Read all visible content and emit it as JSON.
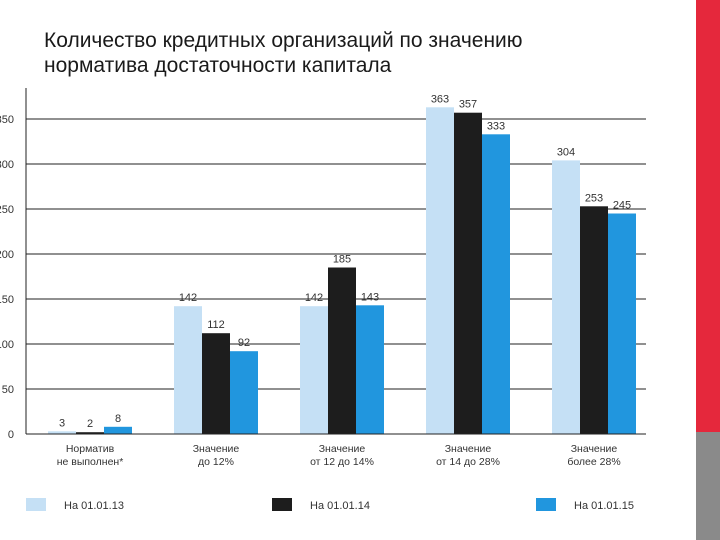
{
  "page": {
    "title_line1": "Количество кредитных организаций по значению",
    "title_line2": "норматива достаточности капитала"
  },
  "colors": {
    "side_red": "#e5283c",
    "side_gray": "#8a8a8a"
  },
  "chart_data": {
    "type": "bar",
    "title": "Количество кредитных организаций по значению норматива достаточности капитала",
    "xlabel": "",
    "ylabel": "",
    "ylim": [
      0,
      370
    ],
    "yticks": [
      0,
      50,
      100,
      150,
      200,
      250,
      300,
      350
    ],
    "categories": [
      [
        "Норматив",
        "не выполнен*"
      ],
      [
        "Значение",
        "до 12%"
      ],
      [
        "Значение",
        "от 12 до 14%"
      ],
      [
        "Значение",
        "от 14 до 28%"
      ],
      [
        "Значение",
        "более 28%"
      ]
    ],
    "series": [
      {
        "name": "На 01.01.13",
        "color": "#c5e0f5",
        "values": [
          3,
          142,
          142,
          363,
          304
        ]
      },
      {
        "name": "На 01.01.14",
        "color": "#1d1d1d",
        "values": [
          2,
          112,
          185,
          357,
          253
        ]
      },
      {
        "name": "На 01.01.15",
        "color": "#2196de",
        "values": [
          8,
          92,
          143,
          333,
          245
        ]
      }
    ],
    "legend_position": "bottom",
    "grid": true
  }
}
